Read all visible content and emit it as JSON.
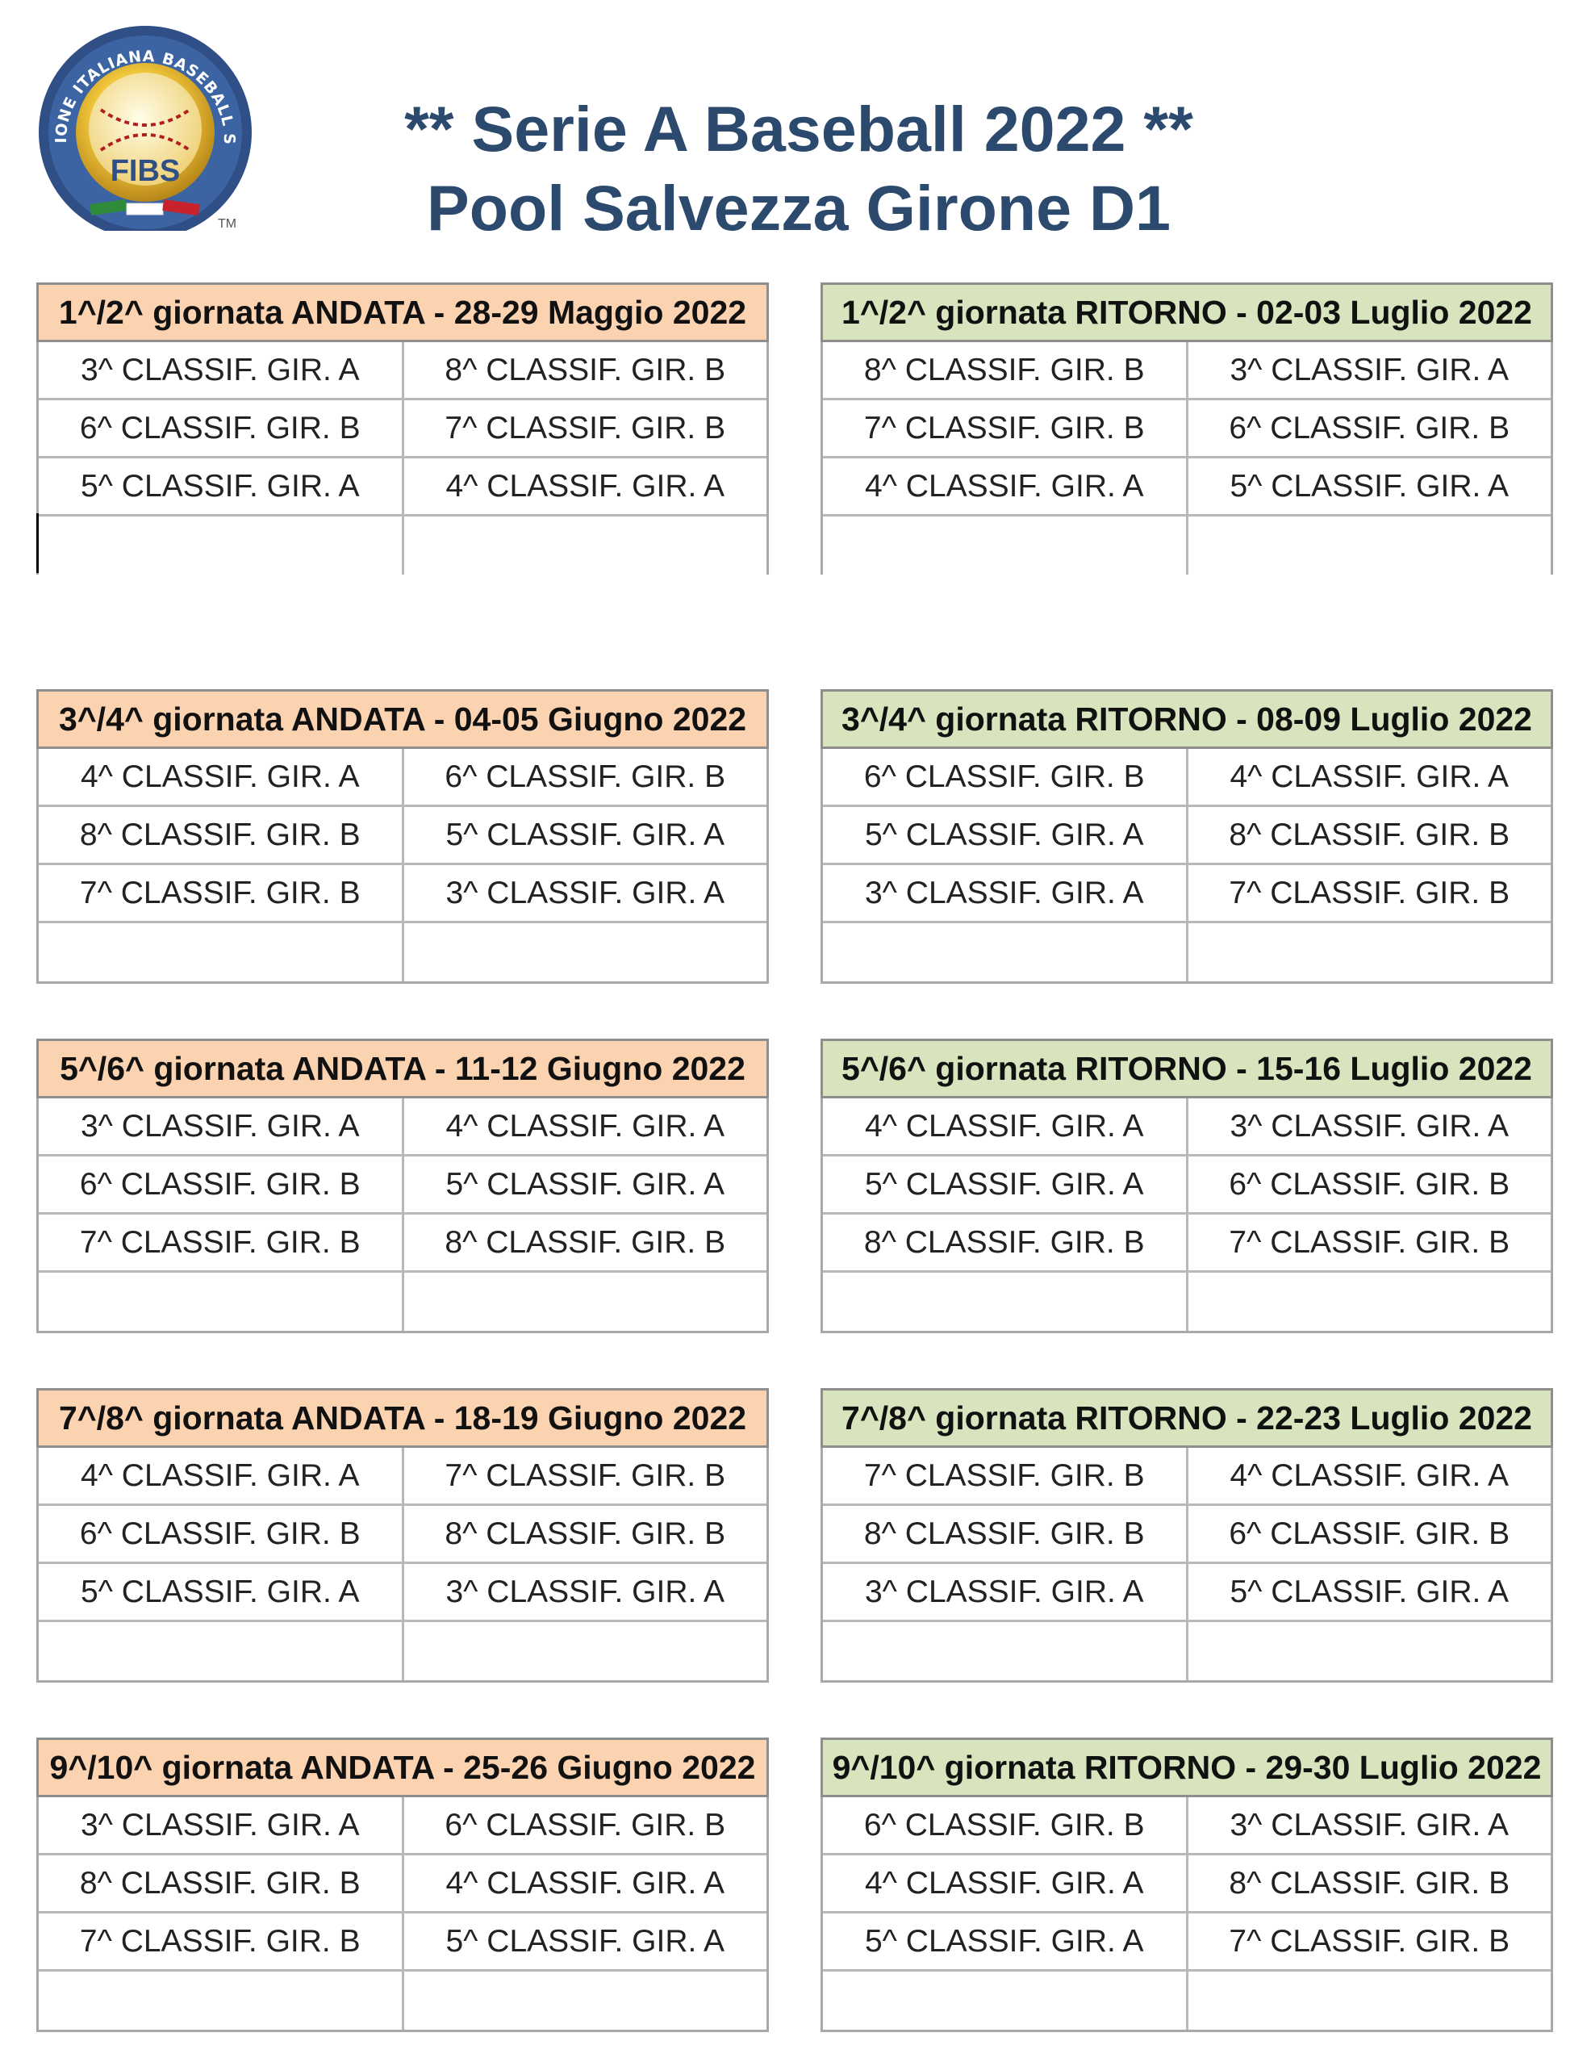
{
  "logo": {
    "ring_text": "FEDERAZIONE ITALIANA BASEBALL SOFTBALL",
    "center_text": "FIBS",
    "tm": "TM"
  },
  "title": {
    "line1": "** Serie A Baseball 2022 **",
    "line2": "Pool Salvezza Girone D1"
  },
  "colors": {
    "andata": "#fbd3b1",
    "ritorno": "#d7e4bd",
    "title": "#2c4a6e"
  },
  "rounds": [
    {
      "andata": {
        "header": "1^/2^ giornata ANDATA - 28-29 Maggio 2022",
        "games": [
          [
            "3^ CLASSIF. GIR. A",
            "8^ CLASSIF. GIR. B"
          ],
          [
            "6^ CLASSIF. GIR. B",
            "7^ CLASSIF. GIR. B"
          ],
          [
            "5^ CLASSIF. GIR. A",
            "4^ CLASSIF. GIR. A"
          ],
          [
            "",
            ""
          ]
        ]
      },
      "ritorno": {
        "header": "1^/2^ giornata RITORNO - 02-03 Luglio 2022",
        "games": [
          [
            "8^ CLASSIF. GIR. B",
            "3^ CLASSIF. GIR. A"
          ],
          [
            "7^ CLASSIF. GIR. B",
            "6^ CLASSIF. GIR. B"
          ],
          [
            "4^ CLASSIF. GIR. A",
            "5^ CLASSIF. GIR. A"
          ],
          [
            "",
            ""
          ]
        ]
      }
    },
    {
      "andata": {
        "header": "3^/4^ giornata ANDATA - 04-05 Giugno 2022",
        "games": [
          [
            "4^ CLASSIF. GIR. A",
            "6^ CLASSIF. GIR. B"
          ],
          [
            "8^ CLASSIF. GIR. B",
            "5^ CLASSIF. GIR. A"
          ],
          [
            "7^ CLASSIF. GIR. B",
            "3^ CLASSIF. GIR. A"
          ],
          [
            "",
            ""
          ]
        ]
      },
      "ritorno": {
        "header": "3^/4^ giornata RITORNO - 08-09  Luglio 2022",
        "games": [
          [
            "6^ CLASSIF. GIR. B",
            "4^ CLASSIF. GIR. A"
          ],
          [
            "5^ CLASSIF. GIR. A",
            "8^ CLASSIF. GIR. B"
          ],
          [
            "3^ CLASSIF. GIR. A",
            "7^ CLASSIF. GIR. B"
          ],
          [
            "",
            ""
          ]
        ]
      }
    },
    {
      "andata": {
        "header": "5^/6^ giornata ANDATA - 11-12 Giugno 2022",
        "games": [
          [
            "3^ CLASSIF. GIR. A",
            "4^ CLASSIF. GIR. A"
          ],
          [
            "6^ CLASSIF. GIR. B",
            "5^ CLASSIF. GIR. A"
          ],
          [
            "7^ CLASSIF. GIR. B",
            "8^ CLASSIF. GIR. B"
          ],
          [
            "",
            ""
          ]
        ]
      },
      "ritorno": {
        "header": "5^/6^ giornata RITORNO - 15-16 Luglio 2022",
        "games": [
          [
            "4^ CLASSIF. GIR. A",
            "3^ CLASSIF. GIR. A"
          ],
          [
            "5^ CLASSIF. GIR. A",
            "6^ CLASSIF. GIR. B"
          ],
          [
            "8^ CLASSIF. GIR. B",
            "7^ CLASSIF. GIR. B"
          ],
          [
            "",
            ""
          ]
        ]
      }
    },
    {
      "andata": {
        "header": "7^/8^ giornata ANDATA - 18-19 Giugno 2022",
        "games": [
          [
            "4^ CLASSIF. GIR. A",
            "7^ CLASSIF. GIR. B"
          ],
          [
            "6^ CLASSIF. GIR. B",
            "8^ CLASSIF. GIR. B"
          ],
          [
            "5^ CLASSIF. GIR. A",
            "3^ CLASSIF. GIR. A"
          ],
          [
            "",
            ""
          ]
        ]
      },
      "ritorno": {
        "header": "7^/8^ giornata RITORNO - 22-23 Luglio 2022",
        "games": [
          [
            "7^ CLASSIF. GIR. B",
            "4^ CLASSIF. GIR. A"
          ],
          [
            "8^ CLASSIF. GIR. B",
            "6^ CLASSIF. GIR. B"
          ],
          [
            "3^ CLASSIF. GIR. A",
            "5^ CLASSIF. GIR. A"
          ],
          [
            "",
            ""
          ]
        ]
      }
    },
    {
      "andata": {
        "header": "9^/10^ giornata ANDATA - 25-26  Giugno 2022",
        "games": [
          [
            "3^ CLASSIF. GIR. A",
            "6^ CLASSIF. GIR. B"
          ],
          [
            "8^ CLASSIF. GIR. B",
            "4^ CLASSIF. GIR. A"
          ],
          [
            "7^ CLASSIF. GIR. B",
            "5^ CLASSIF. GIR. A"
          ],
          [
            "",
            ""
          ]
        ]
      },
      "ritorno": {
        "header": "9^/10^ giornata RITORNO - 29-30 Luglio 2022",
        "games": [
          [
            "6^ CLASSIF. GIR. B",
            "3^ CLASSIF. GIR. A"
          ],
          [
            "4^ CLASSIF. GIR. A",
            "8^ CLASSIF. GIR. B"
          ],
          [
            "5^ CLASSIF. GIR. A",
            "7^ CLASSIF. GIR. B"
          ],
          [
            "",
            ""
          ]
        ]
      }
    }
  ]
}
